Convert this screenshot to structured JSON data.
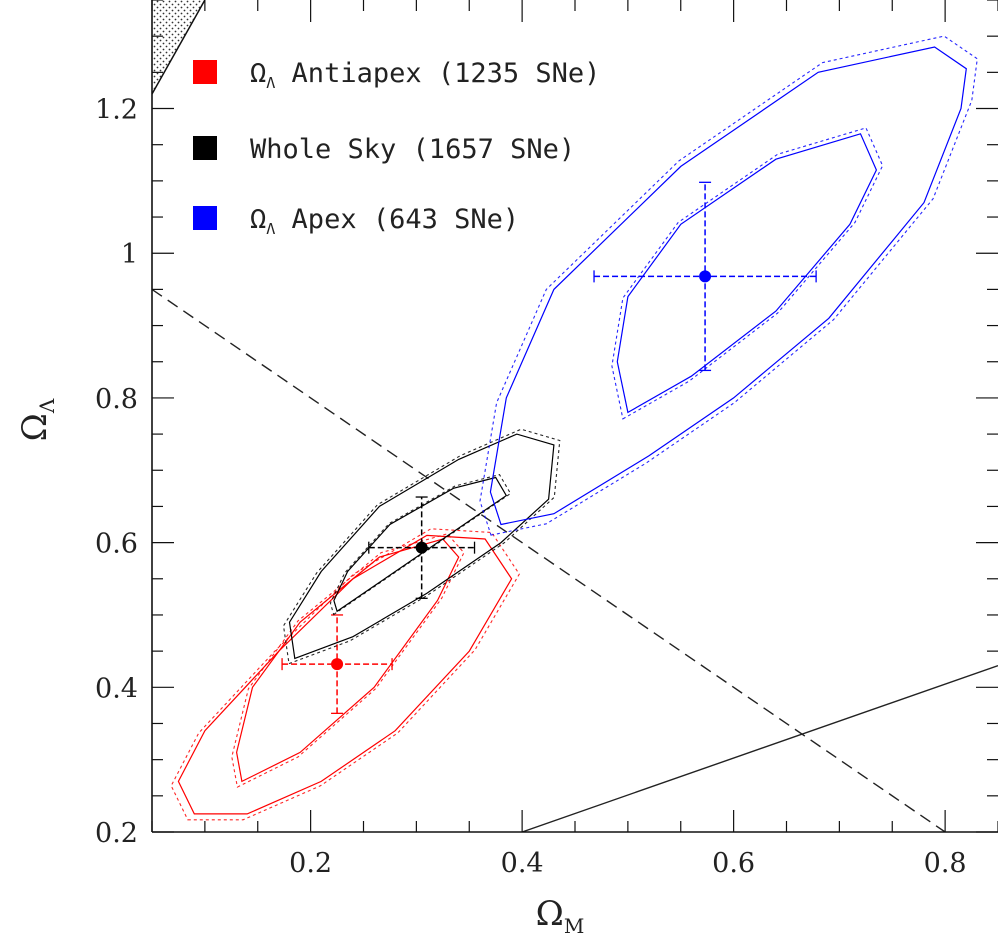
{
  "chart_data": {
    "type": "scatter",
    "xlabel": {
      "symbol": "Ω",
      "subscript": "M"
    },
    "ylabel": {
      "symbol": "Ω",
      "subscript": "Λ"
    },
    "xlim": [
      0.05,
      0.85
    ],
    "ylim": [
      0.2,
      1.35
    ],
    "x_ticks": [
      "0.2",
      "0.4",
      "0.6",
      "0.8"
    ],
    "y_ticks": [
      "0.2",
      "0.4",
      "0.6",
      "0.8",
      "1",
      "1.2"
    ],
    "x_tick_values": [
      0.2,
      0.4,
      0.6,
      0.8
    ],
    "y_tick_values": [
      0.2,
      0.4,
      0.6,
      0.8,
      1.0,
      1.2
    ],
    "legend_position": "top-left",
    "series": [
      {
        "name": "Ω_Λ Antiapex (1235 SNe)",
        "legend_prefix": "Ω",
        "legend_sub": "Λ",
        "legend_text": "Antiapex (1235 SNe)",
        "color": "#ff0000",
        "point": {
          "x": 0.225,
          "y": 0.432,
          "xerr": 0.052,
          "yerr": 0.068
        },
        "contours": [
          [
            [
              0.135,
              0.27
            ],
            [
              0.19,
              0.31
            ],
            [
              0.26,
              0.4
            ],
            [
              0.32,
              0.52
            ],
            [
              0.34,
              0.58
            ],
            [
              0.325,
              0.605
            ],
            [
              0.265,
              0.58
            ],
            [
              0.19,
              0.49
            ],
            [
              0.145,
              0.4
            ],
            [
              0.13,
              0.31
            ]
          ],
          [
            [
              0.09,
              0.225
            ],
            [
              0.14,
              0.225
            ],
            [
              0.21,
              0.27
            ],
            [
              0.28,
              0.34
            ],
            [
              0.35,
              0.45
            ],
            [
              0.39,
              0.55
            ],
            [
              0.365,
              0.605
            ],
            [
              0.31,
              0.61
            ],
            [
              0.24,
              0.55
            ],
            [
              0.17,
              0.45
            ],
            [
              0.1,
              0.34
            ],
            [
              0.075,
              0.27
            ]
          ]
        ]
      },
      {
        "name": "Whole Sky (1657 SNe)",
        "legend_prefix": "",
        "legend_sub": "",
        "legend_text": "Whole Sky (1657 SNe)",
        "color": "#000000",
        "point": {
          "x": 0.305,
          "y": 0.593,
          "xerr": 0.05,
          "yerr": 0.07
        },
        "contours": [
          [
            [
              0.225,
              0.505
            ],
            [
              0.27,
              0.55
            ],
            [
              0.34,
              0.62
            ],
            [
              0.385,
              0.665
            ],
            [
              0.375,
              0.69
            ],
            [
              0.335,
              0.675
            ],
            [
              0.275,
              0.625
            ],
            [
              0.235,
              0.56
            ],
            [
              0.222,
              0.52
            ]
          ],
          [
            [
              0.185,
              0.44
            ],
            [
              0.24,
              0.47
            ],
            [
              0.31,
              0.53
            ],
            [
              0.38,
              0.6
            ],
            [
              0.425,
              0.66
            ],
            [
              0.43,
              0.735
            ],
            [
              0.395,
              0.75
            ],
            [
              0.34,
              0.715
            ],
            [
              0.265,
              0.65
            ],
            [
              0.21,
              0.56
            ],
            [
              0.18,
              0.49
            ]
          ]
        ]
      },
      {
        "name": "Ω_Λ Apex (643 SNe)",
        "legend_prefix": "Ω",
        "legend_sub": "Λ",
        "legend_text": "Apex (643 SNe)",
        "color": "#0000ff",
        "point": {
          "x": 0.573,
          "y": 0.968,
          "xerr": 0.105,
          "yerr": 0.13
        },
        "contours": [
          [
            [
              0.5,
              0.78
            ],
            [
              0.56,
              0.83
            ],
            [
              0.64,
              0.92
            ],
            [
              0.71,
              1.04
            ],
            [
              0.735,
              1.115
            ],
            [
              0.72,
              1.165
            ],
            [
              0.64,
              1.13
            ],
            [
              0.55,
              1.04
            ],
            [
              0.5,
              0.94
            ],
            [
              0.49,
              0.85
            ]
          ],
          [
            [
              0.38,
              0.625
            ],
            [
              0.43,
              0.64
            ],
            [
              0.52,
              0.72
            ],
            [
              0.6,
              0.8
            ],
            [
              0.69,
              0.91
            ],
            [
              0.78,
              1.07
            ],
            [
              0.815,
              1.2
            ],
            [
              0.82,
              1.255
            ],
            [
              0.79,
              1.285
            ],
            [
              0.68,
              1.25
            ],
            [
              0.55,
              1.12
            ],
            [
              0.43,
              0.95
            ],
            [
              0.385,
              0.8
            ],
            [
              0.37,
              0.67
            ]
          ]
        ]
      }
    ],
    "lines": [
      {
        "style": "dashed",
        "x": [
          0.05,
          0.8
        ],
        "y": [
          0.95,
          0.2
        ]
      },
      {
        "style": "solid",
        "x": [
          0.4,
          0.85
        ],
        "y": [
          0.2,
          0.43
        ]
      }
    ],
    "shaded_region": {
      "style": "dotted-hatch",
      "x": [
        0.05,
        0.05,
        0.1
      ],
      "y": [
        1.22,
        1.35,
        1.35
      ]
    }
  }
}
